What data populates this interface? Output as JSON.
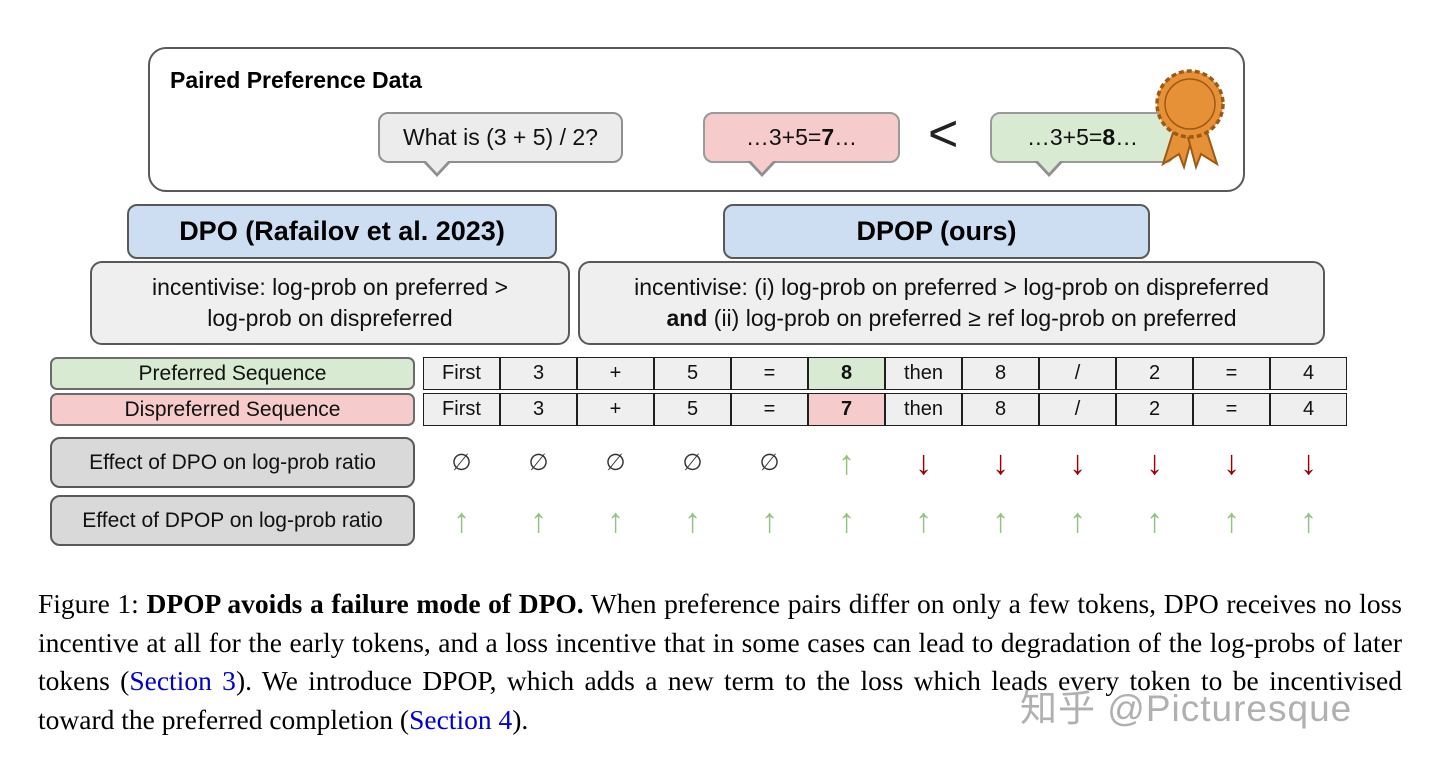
{
  "paired": {
    "title": "Paired Preference Data",
    "prompt": "What is (3 + 5) / 2?",
    "dispreferred": {
      "prefix": "…3+5=",
      "value": "7",
      "suffix": "…"
    },
    "comparator": "<",
    "preferred": {
      "prefix": "…3+5=",
      "value": "8",
      "suffix": "…"
    }
  },
  "methods": {
    "dpo": {
      "title": "DPO (Rafailov et al. 2023)",
      "line1": "incentivise: log-prob on preferred >",
      "line2": "log-prob on dispreferred"
    },
    "dpop": {
      "title": "DPOP (ours)",
      "line1": "incentivise: (i) log-prob on preferred > log-prob on dispreferred",
      "line2_bold": "and",
      "line2_rest": " (ii) log-prob on preferred ≥ ref log-prob on preferred"
    }
  },
  "table": {
    "preferred_label": "Preferred Sequence",
    "dispreferred_label": "Dispreferred Sequence",
    "preferred_tokens": [
      "First",
      "3",
      "+",
      "5",
      "=",
      "8",
      "then",
      "8",
      "/",
      "2",
      "=",
      "4"
    ],
    "dispreferred_tokens": [
      "First",
      "3",
      "+",
      "5",
      "=",
      "7",
      "then",
      "8",
      "/",
      "2",
      "=",
      "4"
    ],
    "highlight_index": 5,
    "dpo_label": "Effect of DPO on log-prob ratio",
    "dpop_label": "Effect of DPOP on log-prob ratio",
    "dpo_effects": [
      "none",
      "none",
      "none",
      "none",
      "none",
      "up",
      "down",
      "down",
      "down",
      "down",
      "down",
      "down"
    ],
    "dpop_effects": [
      "up",
      "up",
      "up",
      "up",
      "up",
      "up",
      "up",
      "up",
      "up",
      "up",
      "up",
      "up"
    ],
    "effect_glyphs": {
      "none": "∅",
      "up": "↑",
      "down": "↓"
    }
  },
  "caption": {
    "label": "Figure 1: ",
    "bold": "DPOP avoids a failure mode of DPO.",
    "seg1": " When preference pairs differ on only a few tokens, DPO receives no loss incentive at all for the early tokens, and a loss incentive that in some cases can lead to degradation of the log-probs of later tokens (",
    "link1": "Section 3",
    "seg2": "). We introduce DPOP, which adds a new term to the loss which leads every token to be incentivised toward the preferred completion (",
    "link2": "Section 4",
    "seg3": ")."
  },
  "watermark": "知乎 @Picturesque",
  "colors": {
    "blue_box": "#cdddf2",
    "gray_box": "#efefef",
    "label_gray": "#d9d9d9",
    "green": "#d8ead2",
    "pink": "#f5cbcb",
    "arrow_green": "#93c47d",
    "arrow_red": "#990000",
    "link": "#0000cc",
    "medal": "#e69138"
  }
}
